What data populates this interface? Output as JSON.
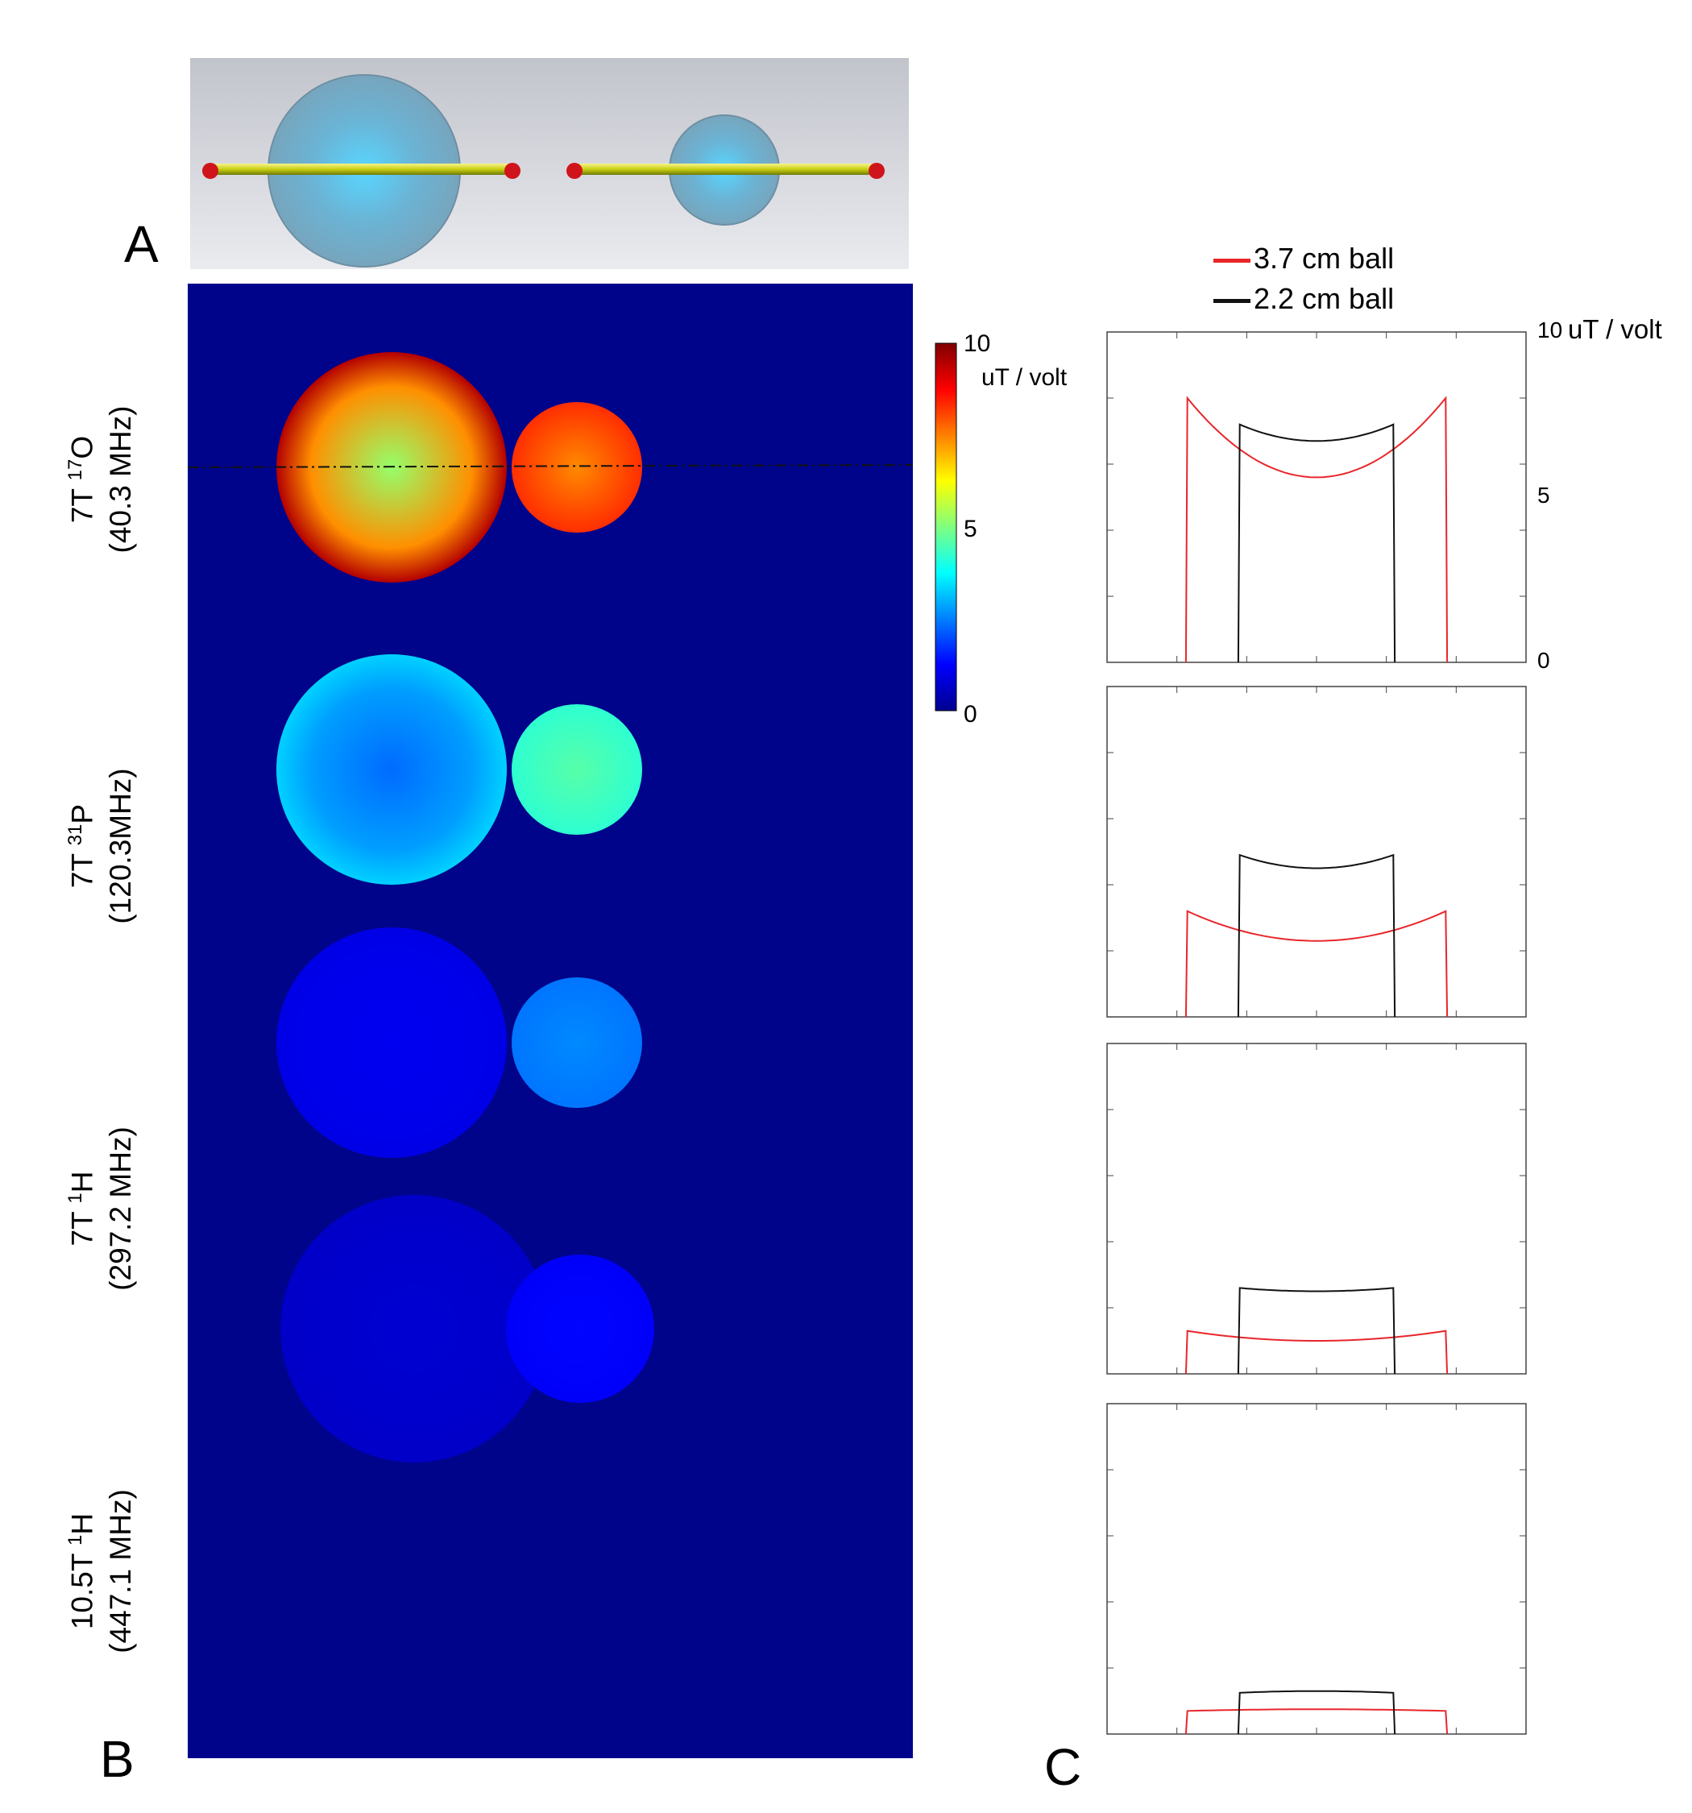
{
  "panels": {
    "a": "A",
    "b": "B",
    "c": "C"
  },
  "row_labels": [
    {
      "line1": "7T ",
      "sup": "17",
      "nucleus": "O",
      "line2": "(40.3 MHz)"
    },
    {
      "line1": "7T ",
      "sup": "31",
      "nucleus": "P",
      "line2": "(120.3MHz)"
    },
    {
      "line1": "7T ",
      "sup": "1",
      "nucleus": "H",
      "line2": "(297.2 MHz)"
    },
    {
      "line1": "10.5T ",
      "sup": "1",
      "nucleus": "H",
      "line2": "(447.1 MHz)"
    }
  ],
  "colorbar": {
    "max": "10",
    "mid": "5",
    "min": "0",
    "unit": "uT / volt"
  },
  "colors": {
    "red_series": "#e8262b",
    "black_series": "#111111",
    "map_background": "#00048a"
  },
  "chart_data": {
    "type": "line",
    "legend": [
      "3.7 cm ball",
      "2.2 cm ball"
    ],
    "ylabel": "uT / volt",
    "y_ticks": [
      "10",
      "5",
      "0"
    ],
    "ylim": [
      0,
      10
    ],
    "xlim": [
      -3.0,
      3.0
    ],
    "subplots": [
      {
        "frequency": "40.3 MHz",
        "series": [
          {
            "name": "3.7 cm ball",
            "edge_value": 8.0,
            "center_value": 5.6,
            "x_range": [
              -1.85,
              1.85
            ]
          },
          {
            "name": "2.2 cm ball",
            "edge_value": 7.2,
            "center_value": 6.7,
            "x_range": [
              -1.1,
              1.1
            ]
          }
        ]
      },
      {
        "frequency": "120.3MHz",
        "series": [
          {
            "name": "3.7 cm ball",
            "edge_value": 3.2,
            "center_value": 2.3,
            "x_range": [
              -1.85,
              1.85
            ]
          },
          {
            "name": "2.2 cm ball",
            "edge_value": 4.9,
            "center_value": 4.5,
            "x_range": [
              -1.1,
              1.1
            ]
          }
        ]
      },
      {
        "frequency": "297.2 MHz",
        "series": [
          {
            "name": "3.7 cm ball",
            "edge_value": 1.3,
            "center_value": 1.0,
            "x_range": [
              -1.85,
              1.85
            ]
          },
          {
            "name": "2.2 cm ball",
            "edge_value": 2.6,
            "center_value": 2.5,
            "x_range": [
              -1.1,
              1.1
            ]
          }
        ]
      },
      {
        "frequency": "447.1 MHz",
        "series": [
          {
            "name": "3.7 cm ball",
            "edge_value": 0.7,
            "center_value": 0.75,
            "x_range": [
              -1.85,
              1.85
            ]
          },
          {
            "name": "2.2 cm ball",
            "edge_value": 1.25,
            "center_value": 1.3,
            "x_range": [
              -1.1,
              1.1
            ]
          }
        ]
      }
    ],
    "field_maps": [
      {
        "frequency": "40.3 MHz",
        "large_center": 5.2,
        "large_edge": 9.5,
        "small_center": 7.4,
        "small_edge": 8.3
      },
      {
        "frequency": "120.3MHz",
        "large_center": 2.3,
        "large_edge": 3.3,
        "small_center": 4.6,
        "small_edge": 4.2
      },
      {
        "frequency": "297.2 MHz",
        "large_center": 1.1,
        "large_edge": 1.0,
        "small_center": 2.6,
        "small_edge": 2.4
      },
      {
        "frequency": "447.1 MHz",
        "large_center": 0.8,
        "large_edge": 0.7,
        "small_center": 1.3,
        "small_edge": 1.2
      }
    ]
  }
}
